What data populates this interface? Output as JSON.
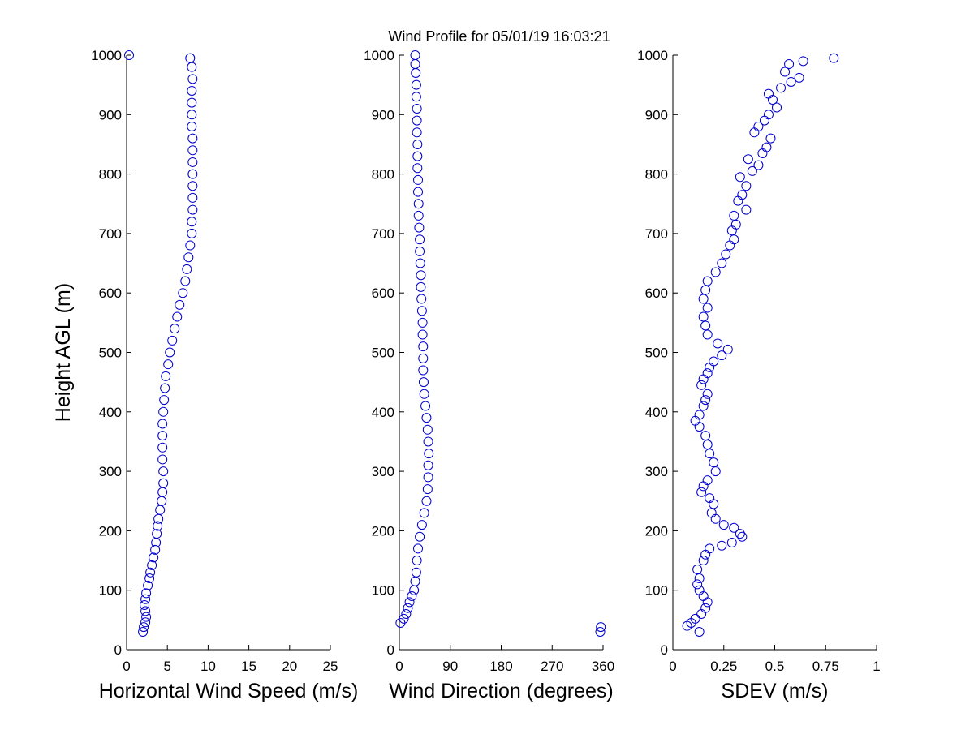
{
  "figure": {
    "title": "Wind Profile for  05/01/19 16:03:21",
    "marker_color": "#0000cc"
  },
  "chart_data": [
    {
      "type": "scatter",
      "id": "speed",
      "xlabel": "Horizontal Wind Speed (m/s)",
      "ylabel": "Height AGL (m)",
      "xlim": [
        0,
        25
      ],
      "ylim": [
        0,
        1000
      ],
      "xticks": [
        0,
        5,
        10,
        15,
        20,
        25
      ],
      "xtick_labels": [
        "0",
        "5",
        "10",
        "15",
        "20",
        "25"
      ],
      "yticks": [
        0,
        100,
        200,
        300,
        400,
        500,
        600,
        700,
        800,
        900,
        1000
      ],
      "ytick_labels": [
        "0",
        "100",
        "200",
        "300",
        "400",
        "500",
        "600",
        "700",
        "800",
        "900",
        "1000"
      ],
      "points": [
        {
          "x": 2.0,
          "y": 30
        },
        {
          "x": 2.1,
          "y": 38
        },
        {
          "x": 2.3,
          "y": 46
        },
        {
          "x": 2.4,
          "y": 55
        },
        {
          "x": 2.3,
          "y": 65
        },
        {
          "x": 2.2,
          "y": 75
        },
        {
          "x": 2.3,
          "y": 85
        },
        {
          "x": 2.4,
          "y": 95
        },
        {
          "x": 2.6,
          "y": 108
        },
        {
          "x": 2.8,
          "y": 120
        },
        {
          "x": 2.9,
          "y": 130
        },
        {
          "x": 3.1,
          "y": 142
        },
        {
          "x": 3.3,
          "y": 155
        },
        {
          "x": 3.5,
          "y": 168
        },
        {
          "x": 3.6,
          "y": 180
        },
        {
          "x": 3.7,
          "y": 195
        },
        {
          "x": 3.8,
          "y": 208
        },
        {
          "x": 3.9,
          "y": 220
        },
        {
          "x": 4.1,
          "y": 235
        },
        {
          "x": 4.3,
          "y": 250
        },
        {
          "x": 4.4,
          "y": 265
        },
        {
          "x": 4.5,
          "y": 280
        },
        {
          "x": 4.5,
          "y": 300
        },
        {
          "x": 4.4,
          "y": 320
        },
        {
          "x": 4.4,
          "y": 340
        },
        {
          "x": 4.4,
          "y": 360
        },
        {
          "x": 4.4,
          "y": 380
        },
        {
          "x": 4.5,
          "y": 400
        },
        {
          "x": 4.6,
          "y": 420
        },
        {
          "x": 4.7,
          "y": 440
        },
        {
          "x": 4.8,
          "y": 460
        },
        {
          "x": 5.1,
          "y": 480
        },
        {
          "x": 5.3,
          "y": 500
        },
        {
          "x": 5.6,
          "y": 520
        },
        {
          "x": 5.9,
          "y": 540
        },
        {
          "x": 6.2,
          "y": 560
        },
        {
          "x": 6.5,
          "y": 580
        },
        {
          "x": 6.9,
          "y": 600
        },
        {
          "x": 7.2,
          "y": 620
        },
        {
          "x": 7.4,
          "y": 640
        },
        {
          "x": 7.6,
          "y": 660
        },
        {
          "x": 7.8,
          "y": 680
        },
        {
          "x": 8.0,
          "y": 700
        },
        {
          "x": 8.0,
          "y": 720
        },
        {
          "x": 8.1,
          "y": 740
        },
        {
          "x": 8.1,
          "y": 760
        },
        {
          "x": 8.1,
          "y": 780
        },
        {
          "x": 8.1,
          "y": 800
        },
        {
          "x": 8.1,
          "y": 820
        },
        {
          "x": 8.1,
          "y": 840
        },
        {
          "x": 8.1,
          "y": 860
        },
        {
          "x": 8.0,
          "y": 880
        },
        {
          "x": 8.0,
          "y": 900
        },
        {
          "x": 8.0,
          "y": 920
        },
        {
          "x": 8.0,
          "y": 940
        },
        {
          "x": 8.1,
          "y": 960
        },
        {
          "x": 8.0,
          "y": 980
        },
        {
          "x": 7.8,
          "y": 995
        },
        {
          "x": 0.3,
          "y": 1000
        }
      ]
    },
    {
      "type": "scatter",
      "id": "direction",
      "xlabel": "Wind Direction (degrees)",
      "ylabel": "",
      "xlim": [
        0,
        360
      ],
      "ylim": [
        0,
        1000
      ],
      "xticks": [
        0,
        90,
        180,
        270,
        360
      ],
      "xtick_labels": [
        "0",
        "90",
        "180",
        "270",
        "360"
      ],
      "yticks": [
        0,
        100,
        200,
        300,
        400,
        500,
        600,
        700,
        800,
        900,
        1000
      ],
      "ytick_labels": [
        "0",
        "100",
        "200",
        "300",
        "400",
        "500",
        "600",
        "700",
        "800",
        "900",
        "1000"
      ],
      "points": [
        {
          "x": 355,
          "y": 30
        },
        {
          "x": 356,
          "y": 38
        },
        {
          "x": 2,
          "y": 45
        },
        {
          "x": 8,
          "y": 52
        },
        {
          "x": 12,
          "y": 60
        },
        {
          "x": 15,
          "y": 70
        },
        {
          "x": 18,
          "y": 80
        },
        {
          "x": 22,
          "y": 90
        },
        {
          "x": 26,
          "y": 100
        },
        {
          "x": 28,
          "y": 115
        },
        {
          "x": 30,
          "y": 130
        },
        {
          "x": 31,
          "y": 150
        },
        {
          "x": 33,
          "y": 170
        },
        {
          "x": 36,
          "y": 190
        },
        {
          "x": 40,
          "y": 210
        },
        {
          "x": 44,
          "y": 230
        },
        {
          "x": 48,
          "y": 250
        },
        {
          "x": 50,
          "y": 270
        },
        {
          "x": 51,
          "y": 290
        },
        {
          "x": 51,
          "y": 310
        },
        {
          "x": 52,
          "y": 330
        },
        {
          "x": 51,
          "y": 350
        },
        {
          "x": 50,
          "y": 370
        },
        {
          "x": 48,
          "y": 390
        },
        {
          "x": 46,
          "y": 410
        },
        {
          "x": 44,
          "y": 430
        },
        {
          "x": 43,
          "y": 450
        },
        {
          "x": 42,
          "y": 470
        },
        {
          "x": 42,
          "y": 490
        },
        {
          "x": 42,
          "y": 510
        },
        {
          "x": 41,
          "y": 530
        },
        {
          "x": 41,
          "y": 550
        },
        {
          "x": 40,
          "y": 570
        },
        {
          "x": 39,
          "y": 590
        },
        {
          "x": 38,
          "y": 610
        },
        {
          "x": 38,
          "y": 630
        },
        {
          "x": 37,
          "y": 650
        },
        {
          "x": 36,
          "y": 670
        },
        {
          "x": 36,
          "y": 690
        },
        {
          "x": 35,
          "y": 710
        },
        {
          "x": 34,
          "y": 730
        },
        {
          "x": 34,
          "y": 750
        },
        {
          "x": 33,
          "y": 770
        },
        {
          "x": 33,
          "y": 790
        },
        {
          "x": 32,
          "y": 810
        },
        {
          "x": 32,
          "y": 830
        },
        {
          "x": 32,
          "y": 850
        },
        {
          "x": 31,
          "y": 870
        },
        {
          "x": 31,
          "y": 890
        },
        {
          "x": 31,
          "y": 910
        },
        {
          "x": 30,
          "y": 930
        },
        {
          "x": 30,
          "y": 950
        },
        {
          "x": 29,
          "y": 970
        },
        {
          "x": 28,
          "y": 985
        },
        {
          "x": 28,
          "y": 1000
        }
      ]
    },
    {
      "type": "scatter",
      "id": "sdev",
      "xlabel": "SDEV  (m/s)",
      "ylabel": "",
      "xlim": [
        0,
        1
      ],
      "ylim": [
        0,
        1000
      ],
      "xticks": [
        0,
        0.25,
        0.5,
        0.75,
        1
      ],
      "xtick_labels": [
        "0",
        "0.25",
        "0.5",
        "0.75",
        "1"
      ],
      "yticks": [
        0,
        100,
        200,
        300,
        400,
        500,
        600,
        700,
        800,
        900,
        1000
      ],
      "ytick_labels": [
        "0",
        "100",
        "200",
        "300",
        "400",
        "500",
        "600",
        "700",
        "800",
        "900",
        "1000"
      ],
      "points": [
        {
          "x": 0.13,
          "y": 30
        },
        {
          "x": 0.07,
          "y": 40
        },
        {
          "x": 0.09,
          "y": 45
        },
        {
          "x": 0.11,
          "y": 52
        },
        {
          "x": 0.14,
          "y": 60
        },
        {
          "x": 0.16,
          "y": 70
        },
        {
          "x": 0.17,
          "y": 80
        },
        {
          "x": 0.15,
          "y": 90
        },
        {
          "x": 0.13,
          "y": 100
        },
        {
          "x": 0.12,
          "y": 110
        },
        {
          "x": 0.13,
          "y": 120
        },
        {
          "x": 0.12,
          "y": 135
        },
        {
          "x": 0.15,
          "y": 150
        },
        {
          "x": 0.16,
          "y": 160
        },
        {
          "x": 0.18,
          "y": 170
        },
        {
          "x": 0.24,
          "y": 175
        },
        {
          "x": 0.29,
          "y": 180
        },
        {
          "x": 0.34,
          "y": 190
        },
        {
          "x": 0.33,
          "y": 195
        },
        {
          "x": 0.3,
          "y": 205
        },
        {
          "x": 0.25,
          "y": 210
        },
        {
          "x": 0.21,
          "y": 220
        },
        {
          "x": 0.19,
          "y": 230
        },
        {
          "x": 0.2,
          "y": 245
        },
        {
          "x": 0.18,
          "y": 255
        },
        {
          "x": 0.14,
          "y": 265
        },
        {
          "x": 0.15,
          "y": 275
        },
        {
          "x": 0.17,
          "y": 285
        },
        {
          "x": 0.21,
          "y": 300
        },
        {
          "x": 0.2,
          "y": 315
        },
        {
          "x": 0.18,
          "y": 330
        },
        {
          "x": 0.17,
          "y": 345
        },
        {
          "x": 0.16,
          "y": 360
        },
        {
          "x": 0.13,
          "y": 375
        },
        {
          "x": 0.11,
          "y": 385
        },
        {
          "x": 0.13,
          "y": 395
        },
        {
          "x": 0.15,
          "y": 410
        },
        {
          "x": 0.16,
          "y": 420
        },
        {
          "x": 0.17,
          "y": 430
        },
        {
          "x": 0.14,
          "y": 445
        },
        {
          "x": 0.15,
          "y": 455
        },
        {
          "x": 0.17,
          "y": 465
        },
        {
          "x": 0.18,
          "y": 475
        },
        {
          "x": 0.2,
          "y": 485
        },
        {
          "x": 0.24,
          "y": 495
        },
        {
          "x": 0.27,
          "y": 505
        },
        {
          "x": 0.22,
          "y": 515
        },
        {
          "x": 0.17,
          "y": 530
        },
        {
          "x": 0.16,
          "y": 545
        },
        {
          "x": 0.15,
          "y": 560
        },
        {
          "x": 0.17,
          "y": 575
        },
        {
          "x": 0.15,
          "y": 590
        },
        {
          "x": 0.16,
          "y": 605
        },
        {
          "x": 0.17,
          "y": 620
        },
        {
          "x": 0.21,
          "y": 635
        },
        {
          "x": 0.24,
          "y": 650
        },
        {
          "x": 0.26,
          "y": 665
        },
        {
          "x": 0.28,
          "y": 680
        },
        {
          "x": 0.3,
          "y": 690
        },
        {
          "x": 0.29,
          "y": 705
        },
        {
          "x": 0.31,
          "y": 715
        },
        {
          "x": 0.3,
          "y": 730
        },
        {
          "x": 0.36,
          "y": 740
        },
        {
          "x": 0.32,
          "y": 755
        },
        {
          "x": 0.34,
          "y": 765
        },
        {
          "x": 0.36,
          "y": 780
        },
        {
          "x": 0.33,
          "y": 795
        },
        {
          "x": 0.39,
          "y": 805
        },
        {
          "x": 0.42,
          "y": 815
        },
        {
          "x": 0.37,
          "y": 825
        },
        {
          "x": 0.44,
          "y": 835
        },
        {
          "x": 0.46,
          "y": 845
        },
        {
          "x": 0.48,
          "y": 860
        },
        {
          "x": 0.4,
          "y": 870
        },
        {
          "x": 0.42,
          "y": 880
        },
        {
          "x": 0.45,
          "y": 890
        },
        {
          "x": 0.47,
          "y": 900
        },
        {
          "x": 0.51,
          "y": 912
        },
        {
          "x": 0.49,
          "y": 925
        },
        {
          "x": 0.47,
          "y": 935
        },
        {
          "x": 0.53,
          "y": 945
        },
        {
          "x": 0.58,
          "y": 955
        },
        {
          "x": 0.62,
          "y": 962
        },
        {
          "x": 0.55,
          "y": 972
        },
        {
          "x": 0.57,
          "y": 985
        },
        {
          "x": 0.64,
          "y": 990
        },
        {
          "x": 0.79,
          "y": 995
        }
      ]
    }
  ]
}
